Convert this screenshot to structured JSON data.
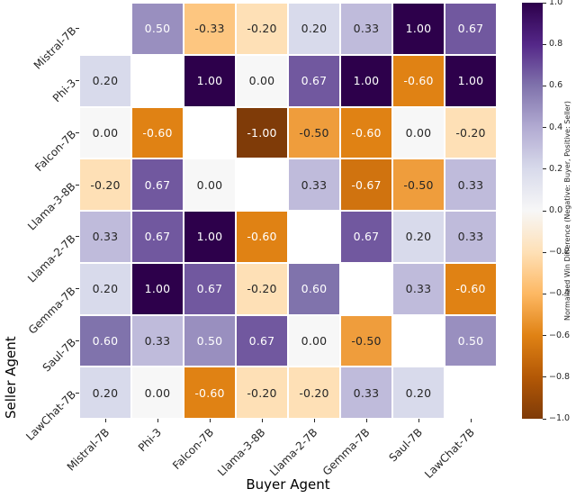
{
  "chart_data": {
    "type": "heatmap",
    "title": "",
    "xlabel": "Buyer Agent",
    "ylabel": "Seller Agent",
    "x_categories": [
      "Mistral-7B",
      "Phi-3",
      "Falcon-7B",
      "Llama-3-8B",
      "Llama-2-7B",
      "Gemma-7B",
      "Saul-7B",
      "LawChat-7B"
    ],
    "y_categories": [
      "Mistral-7B",
      "Phi-3",
      "Falcon-7B",
      "Llama-3-8B",
      "Llama-2-7B",
      "Gemma-7B",
      "Saul-7B",
      "LawChat-7B"
    ],
    "matrix": [
      [
        null,
        0.5,
        -0.33,
        -0.2,
        0.2,
        0.33,
        1.0,
        0.67
      ],
      [
        0.2,
        null,
        1.0,
        0.0,
        0.67,
        1.0,
        -0.6,
        1.0
      ],
      [
        0.0,
        -0.6,
        null,
        -1.0,
        -0.5,
        -0.6,
        0.0,
        -0.2
      ],
      [
        -0.2,
        0.67,
        0.0,
        null,
        0.33,
        -0.67,
        -0.5,
        0.33
      ],
      [
        0.33,
        0.67,
        1.0,
        -0.6,
        null,
        0.67,
        0.2,
        0.33
      ],
      [
        0.2,
        1.0,
        0.67,
        -0.2,
        0.6,
        null,
        0.33,
        -0.6
      ],
      [
        0.6,
        0.33,
        0.5,
        0.67,
        0.0,
        -0.5,
        null,
        0.5
      ],
      [
        0.2,
        0.0,
        -0.6,
        -0.2,
        -0.2,
        0.33,
        0.2,
        null
      ]
    ],
    "diagonal_masked": true,
    "vmin": -1.0,
    "vmax": 1.0,
    "grid_line_color": "#ffffff",
    "colormap": {
      "name": "PuOr",
      "anchors": [
        "#7f3b08",
        "#b35806",
        "#e08214",
        "#fdb863",
        "#fee0b6",
        "#f7f7f7",
        "#d8daeb",
        "#b2abd2",
        "#8073ac",
        "#542788",
        "#2d004b"
      ]
    },
    "annotation_text_colors": {
      "dark": "#262626",
      "light": "#ffffff"
    },
    "colorbar": {
      "label": "Normalized Win Difference (Negative: Buyer, Positive: Seller)",
      "ticks": [
        1.0,
        0.8,
        0.6,
        0.4,
        0.2,
        0.0,
        -0.2,
        -0.4,
        -0.6,
        -0.8,
        -1.0
      ]
    },
    "legend": "none"
  }
}
